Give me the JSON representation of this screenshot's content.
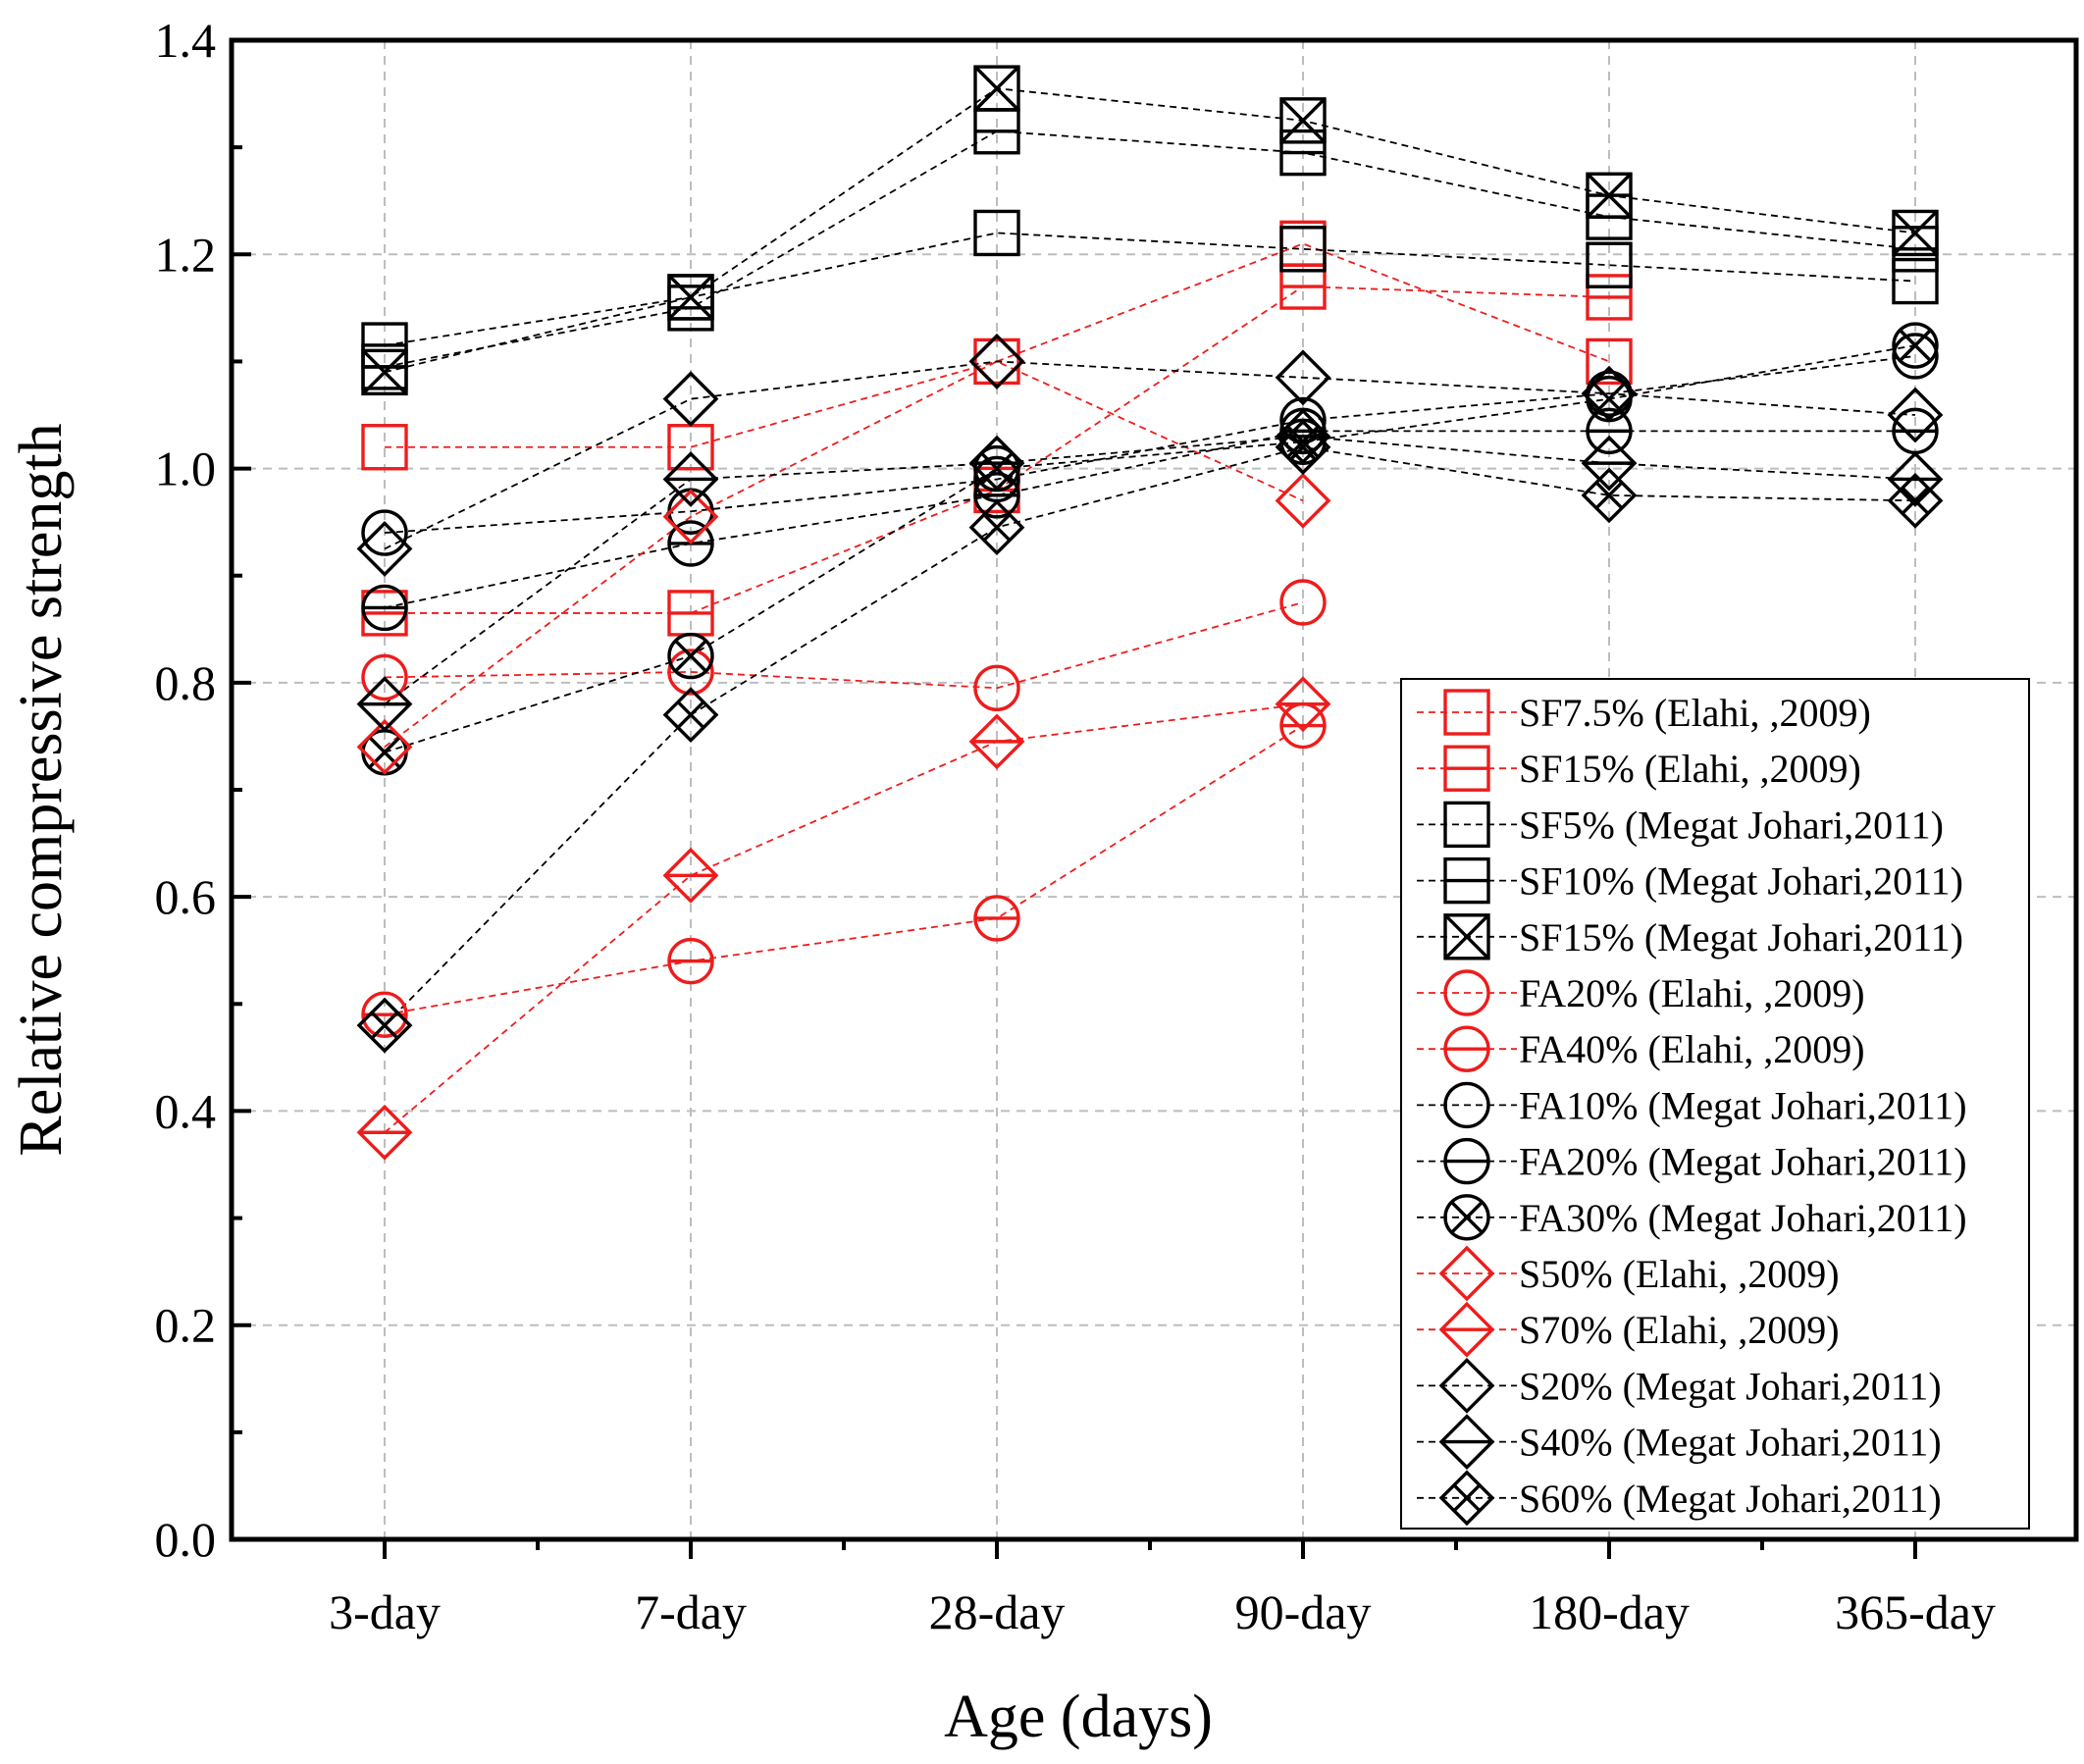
{
  "chart_data": {
    "type": "line",
    "title": "",
    "xlabel": "Age (days)",
    "ylabel": "Relative compressive strength",
    "categories": [
      "3-day",
      "7-day",
      "28-day",
      "90-day",
      "180-day",
      "365-day"
    ],
    "ylim": [
      0.0,
      1.4
    ],
    "yticks": [
      0.0,
      0.2,
      0.4,
      0.6,
      0.8,
      1.0,
      1.2,
      1.4
    ],
    "ytick_labels": [
      "0.0",
      "0.2",
      "0.4",
      "0.6",
      "0.8",
      "1.0",
      "1.2",
      "1.4"
    ],
    "grid": true,
    "legend_position": "bottom-right",
    "series": [
      {
        "name": "SF7.5% (Elahi, ,2009)",
        "color": "#ee1c1c",
        "marker": "square",
        "values": [
          1.02,
          1.02,
          1.1,
          1.21,
          1.1,
          null
        ]
      },
      {
        "name": "SF15% (Elahi, ,2009)",
        "color": "#ee1c1c",
        "marker": "square-h",
        "values": [
          0.865,
          0.865,
          0.98,
          1.17,
          1.16,
          null
        ]
      },
      {
        "name": "SF5% (Megat Johari,2011)",
        "color": "#000000",
        "marker": "square",
        "values": [
          1.115,
          1.16,
          1.22,
          1.205,
          1.19,
          1.175
        ]
      },
      {
        "name": "SF10% (Megat Johari,2011)",
        "color": "#000000",
        "marker": "square-h",
        "values": [
          1.095,
          1.15,
          1.315,
          1.295,
          1.235,
          1.205
        ]
      },
      {
        "name": "SF15% (Megat Johari,2011)",
        "color": "#000000",
        "marker": "square-x",
        "values": [
          1.09,
          1.16,
          1.355,
          1.325,
          1.255,
          1.22
        ]
      },
      {
        "name": "FA20% (Elahi, ,2009)",
        "color": "#ee1c1c",
        "marker": "circle",
        "values": [
          0.805,
          0.81,
          0.795,
          0.875,
          null,
          null
        ]
      },
      {
        "name": "FA40% (Elahi, ,2009)",
        "color": "#ee1c1c",
        "marker": "circle-h",
        "values": [
          0.49,
          0.54,
          0.58,
          0.76,
          null,
          null
        ]
      },
      {
        "name": "FA10% (Megat Johari,2011)",
        "color": "#000000",
        "marker": "circle",
        "values": [
          0.94,
          0.96,
          0.99,
          1.045,
          1.07,
          1.105
        ]
      },
      {
        "name": "FA20% (Megat Johari,2011)",
        "color": "#000000",
        "marker": "circle-h",
        "values": [
          0.87,
          0.93,
          0.975,
          1.035,
          1.035,
          1.035
        ]
      },
      {
        "name": "FA30% (Megat Johari,2011)",
        "color": "#000000",
        "marker": "circle-x",
        "values": [
          0.735,
          0.825,
          1.0,
          1.025,
          1.065,
          1.115
        ]
      },
      {
        "name": "S50% (Elahi, ,2009)",
        "color": "#ee1c1c",
        "marker": "diamond",
        "values": [
          0.74,
          0.955,
          1.1,
          0.97,
          null,
          null
        ]
      },
      {
        "name": "S70% (Elahi, ,2009)",
        "color": "#ee1c1c",
        "marker": "diamond-h",
        "values": [
          0.38,
          0.62,
          0.745,
          0.78,
          null,
          null
        ]
      },
      {
        "name": "S20% (Megat Johari,2011)",
        "color": "#000000",
        "marker": "diamond",
        "values": [
          0.925,
          1.065,
          1.1,
          1.085,
          1.07,
          1.05
        ]
      },
      {
        "name": "S40% (Megat Johari,2011)",
        "color": "#000000",
        "marker": "diamond-h",
        "values": [
          0.78,
          0.99,
          1.005,
          1.03,
          1.005,
          0.99
        ]
      },
      {
        "name": "S60% (Megat Johari,2011)",
        "color": "#000000",
        "marker": "diamond-x",
        "values": [
          0.48,
          0.77,
          0.945,
          1.02,
          0.975,
          0.97
        ]
      }
    ]
  }
}
